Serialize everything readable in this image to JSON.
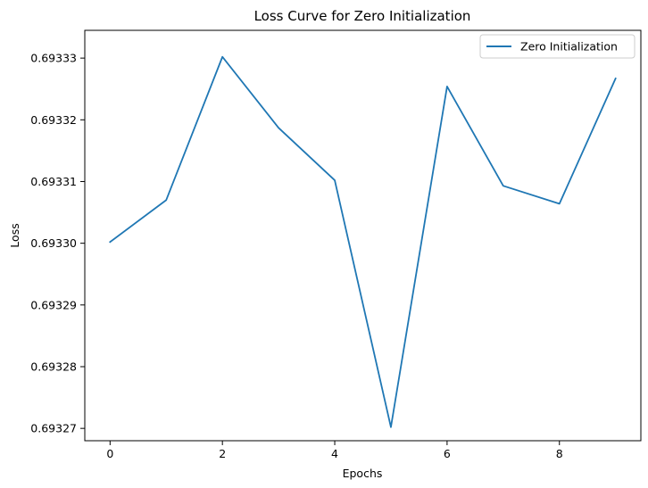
{
  "chart_data": {
    "type": "line",
    "title": "Loss Curve for Zero Initialization",
    "xlabel": "Epochs",
    "ylabel": "Loss",
    "x": [
      0,
      1,
      2,
      3,
      4,
      5,
      6,
      7,
      8,
      9
    ],
    "series": [
      {
        "name": "Zero Initialization",
        "color": "#1f77b4",
        "values": [
          0.6933002,
          0.693307,
          0.6933302,
          0.6933187,
          0.6933102,
          0.6932702,
          0.6933254,
          0.6933093,
          0.6933064,
          0.6933267
        ]
      }
    ],
    "xlim": [
      -0.45,
      9.45
    ],
    "ylim": [
      0.693268,
      0.6933345
    ],
    "xticks": [
      0,
      2,
      4,
      6,
      8
    ],
    "xtick_labels": [
      "0",
      "2",
      "4",
      "6",
      "8"
    ],
    "yticks": [
      0.69327,
      0.69328,
      0.69329,
      0.6933,
      0.69331,
      0.69332,
      0.69333
    ],
    "ytick_labels": [
      "0.69327",
      "0.69328",
      "0.69329",
      "0.69330",
      "0.69331",
      "0.69332",
      "0.69333"
    ],
    "legend_position": "top-right",
    "grid": false
  }
}
